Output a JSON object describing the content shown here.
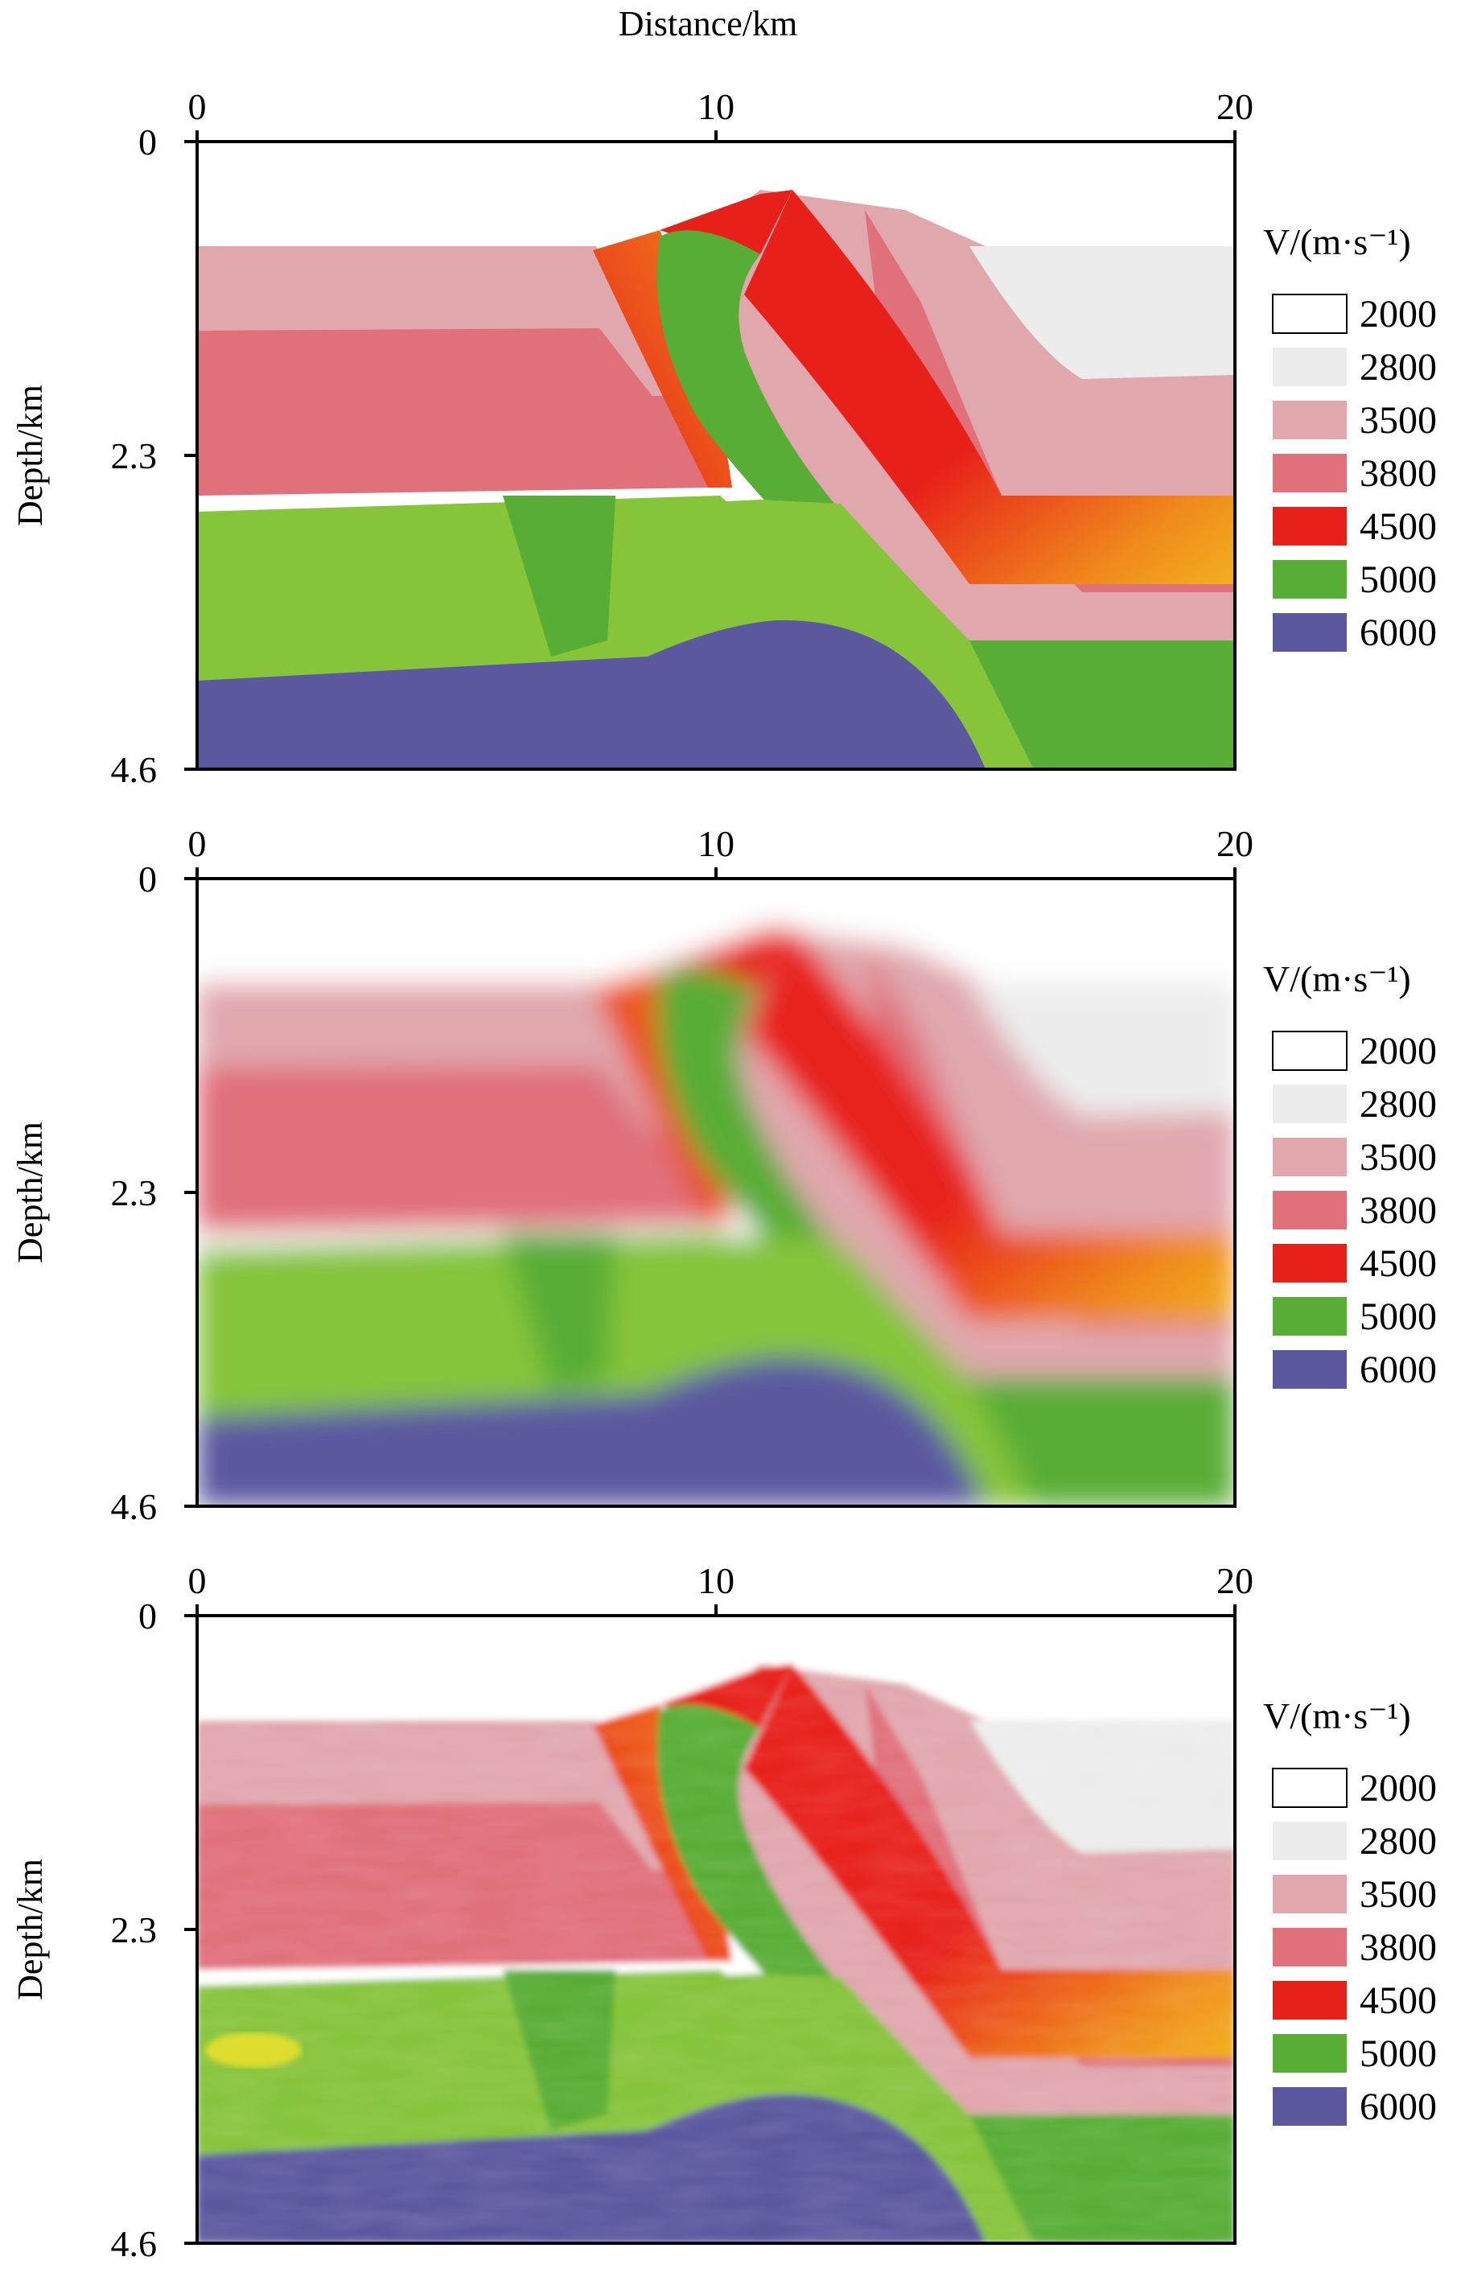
{
  "x_axis_title": "Distance/km",
  "y_axis_title": "Depth/km",
  "legend_title": "V/(m·s⁻¹)",
  "legend": [
    {
      "label": "2000",
      "color": "#ffffff"
    },
    {
      "label": "2800",
      "color": "#ececec"
    },
    {
      "label": "3500",
      "color": "#e0a7ad"
    },
    {
      "label": "3800",
      "color": "#e0707a"
    },
    {
      "label": "4500",
      "color": "#e8201a"
    },
    {
      "label": "5000",
      "color": "#58ad34"
    },
    {
      "label": "6000",
      "color": "#5b58a0"
    }
  ],
  "x_ticks": [
    "0",
    "10",
    "20"
  ],
  "y_ticks": [
    "0",
    "2.3",
    "4.6"
  ],
  "chart_data": [
    {
      "type": "heatmap",
      "panel": "upper",
      "xlabel": "Distance/km",
      "ylabel": "Depth/km",
      "xlim": [
        0,
        20
      ],
      "ylim": [
        0,
        4.6
      ],
      "x_ticks": [
        0,
        10,
        20
      ],
      "y_ticks": [
        0,
        2.3,
        4.6
      ],
      "colorbar": {
        "title": "V/(m·s⁻¹)",
        "levels": [
          2000,
          2800,
          3500,
          3800,
          4500,
          5000,
          6000
        ]
      }
    },
    {
      "type": "heatmap",
      "panel": "middle",
      "xlabel": "",
      "ylabel": "Depth/km",
      "xlim": [
        0,
        20
      ],
      "ylim": [
        0,
        4.6
      ],
      "x_ticks": [
        0,
        10,
        20
      ],
      "y_ticks": [
        0,
        2.3,
        4.6
      ],
      "colorbar": {
        "title": "V/(m·s⁻¹)",
        "levels": [
          2000,
          2800,
          3500,
          3800,
          4500,
          5000,
          6000
        ]
      }
    },
    {
      "type": "heatmap",
      "panel": "lower",
      "xlabel": "",
      "ylabel": "Depth/km",
      "xlim": [
        0,
        20
      ],
      "ylim": [
        0,
        4.6
      ],
      "x_ticks": [
        0,
        10,
        20
      ],
      "y_ticks": [
        0,
        2.3,
        4.6
      ],
      "colorbar": {
        "title": "V/(m·s⁻¹)",
        "levels": [
          2000,
          2800,
          3500,
          3800,
          4500,
          5000,
          6000
        ]
      }
    }
  ]
}
